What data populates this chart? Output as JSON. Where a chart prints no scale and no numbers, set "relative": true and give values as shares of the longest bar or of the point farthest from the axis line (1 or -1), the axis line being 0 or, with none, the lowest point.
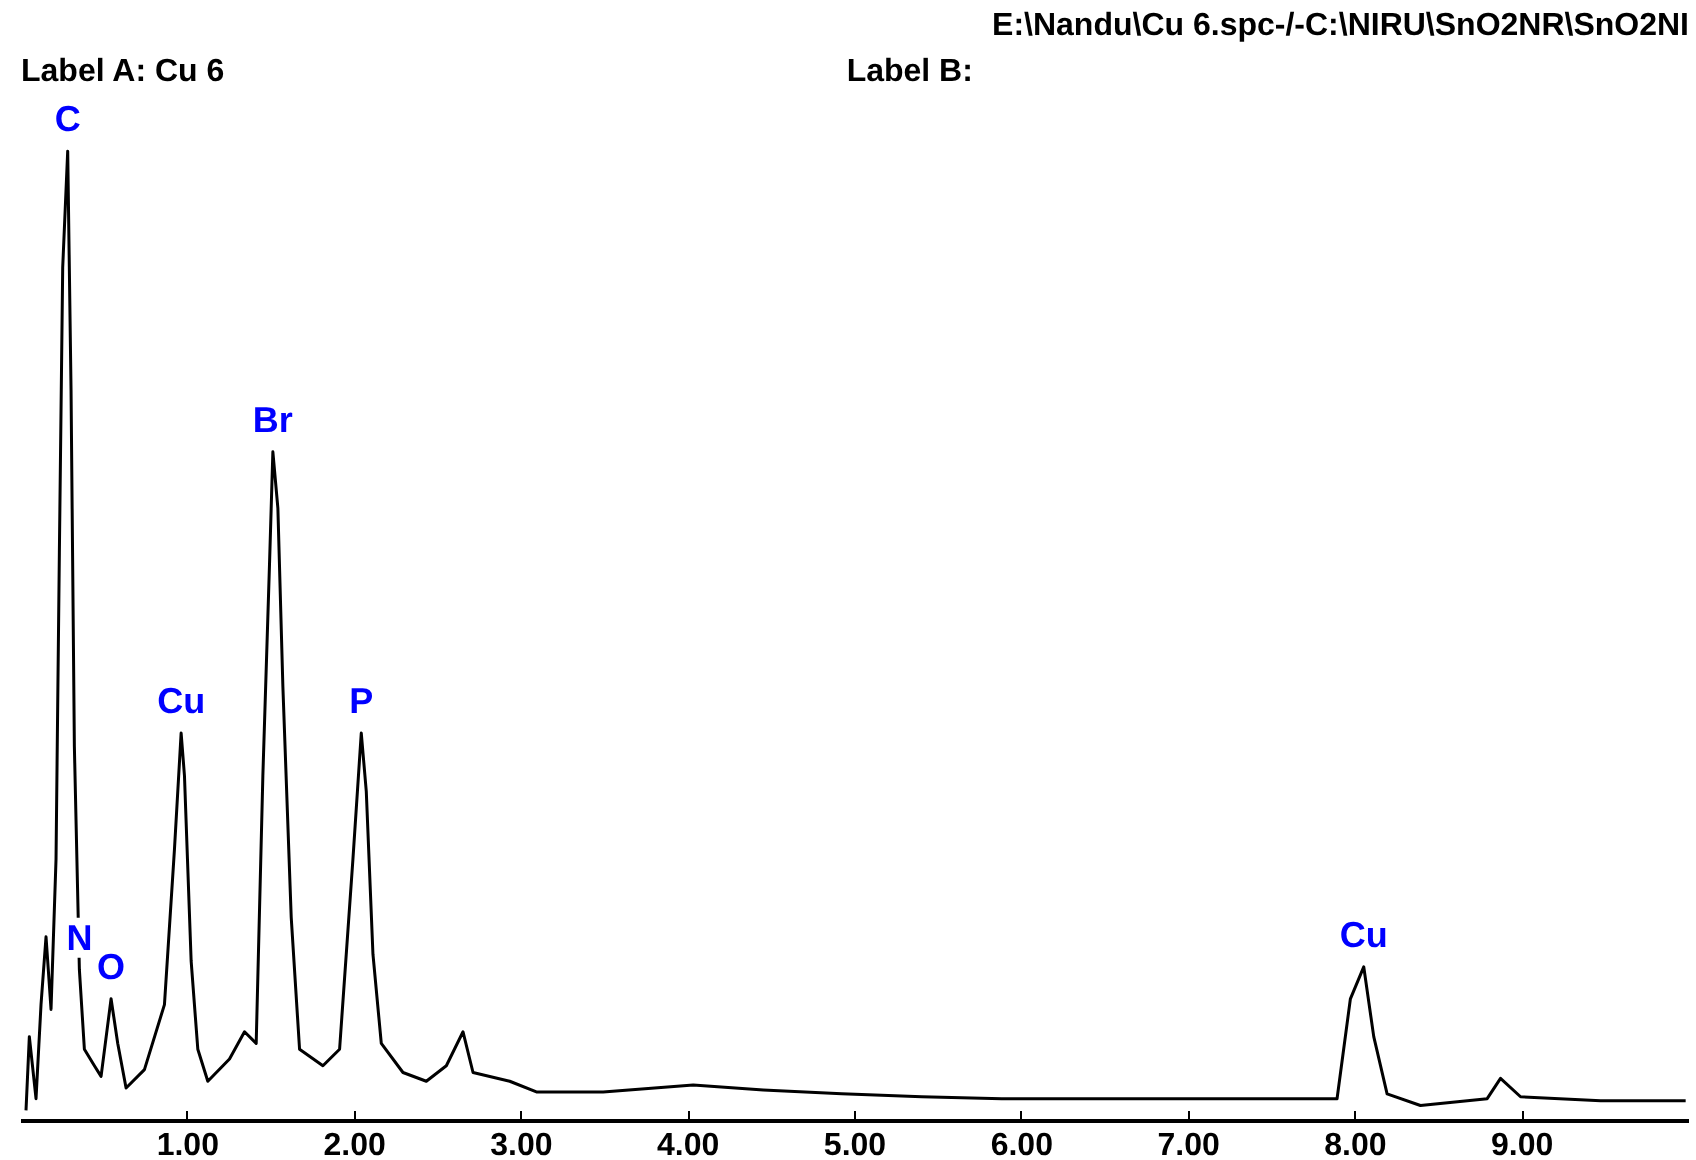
{
  "chart_data": {
    "type": "line",
    "title": "E:\\Nandu\\Cu 6.spc-/-C:\\NIRU\\SnO2NR\\SnO2NI",
    "subtitle": "Label A: Cu 6",
    "relative": true,
    "grid": false,
    "marker": "none",
    "line_style": "solid",
    "xlim": [
      0.0,
      10.0
    ],
    "xticks": [
      {
        "value": 1,
        "label": "1.00"
      },
      {
        "value": 2,
        "label": "2.00"
      },
      {
        "value": 3,
        "label": "3.00"
      },
      {
        "value": 4,
        "label": "4.00"
      },
      {
        "value": 5,
        "label": "5.00"
      },
      {
        "value": 6,
        "label": "6.00"
      },
      {
        "value": 7,
        "label": "7.00"
      },
      {
        "value": 8,
        "label": "8.00"
      },
      {
        "value": 9,
        "label": "9.00"
      }
    ],
    "series": [
      {
        "color": "#000000",
        "x": [
          0.03,
          0.05,
          0.09,
          0.12,
          0.15,
          0.18,
          0.21,
          0.23,
          0.25,
          0.28,
          0.3,
          0.32,
          0.35,
          0.38,
          0.44,
          0.48,
          0.54,
          0.58,
          0.63,
          0.74,
          0.86,
          0.92,
          0.96,
          0.98,
          1.02,
          1.06,
          1.12,
          1.25,
          1.34,
          1.41,
          1.45,
          1.49,
          1.51,
          1.54,
          1.57,
          1.62,
          1.67,
          1.81,
          1.91,
          1.95,
          1.99,
          2.04,
          2.07,
          2.11,
          2.16,
          2.29,
          2.43,
          2.55,
          2.65,
          2.71,
          2.93,
          3.09,
          3.49,
          4.03,
          4.45,
          4.92,
          5.4,
          5.88,
          6.84,
          7.55,
          7.89,
          7.97,
          8.05,
          8.11,
          8.19,
          8.39,
          8.79,
          8.87,
          8.99,
          9.47,
          9.98
        ],
        "values": [
          0.011,
          0.087,
          0.023,
          0.12,
          0.19,
          0.115,
          0.27,
          0.586,
          0.88,
          1.0,
          0.754,
          0.386,
          0.156,
          0.074,
          0.057,
          0.046,
          0.126,
          0.08,
          0.034,
          0.053,
          0.12,
          0.28,
          0.4,
          0.356,
          0.165,
          0.074,
          0.041,
          0.064,
          0.092,
          0.08,
          0.356,
          0.575,
          0.69,
          0.632,
          0.448,
          0.21,
          0.074,
          0.057,
          0.074,
          0.172,
          0.27,
          0.4,
          0.34,
          0.172,
          0.08,
          0.05,
          0.041,
          0.057,
          0.092,
          0.05,
          0.041,
          0.03,
          0.03,
          0.037,
          0.032,
          0.028,
          0.025,
          0.023,
          0.023,
          0.023,
          0.023,
          0.126,
          0.159,
          0.087,
          0.028,
          0.016,
          0.023,
          0.044,
          0.025,
          0.021,
          0.021
        ]
      }
    ],
    "annotations": [
      "Label B:",
      {
        "text": "C",
        "x": 0.28,
        "y": 1.0
      },
      {
        "text": "N",
        "x": 0.35,
        "y": 0.156
      },
      {
        "text": "O",
        "x": 0.54,
        "y": 0.126
      },
      {
        "text": "Cu",
        "x": 0.96,
        "y": 0.4
      },
      {
        "text": "Br",
        "x": 1.51,
        "y": 0.69
      },
      {
        "text": "P",
        "x": 2.04,
        "y": 0.4
      },
      {
        "text": "Cu",
        "x": 8.05,
        "y": 0.159
      }
    ]
  }
}
